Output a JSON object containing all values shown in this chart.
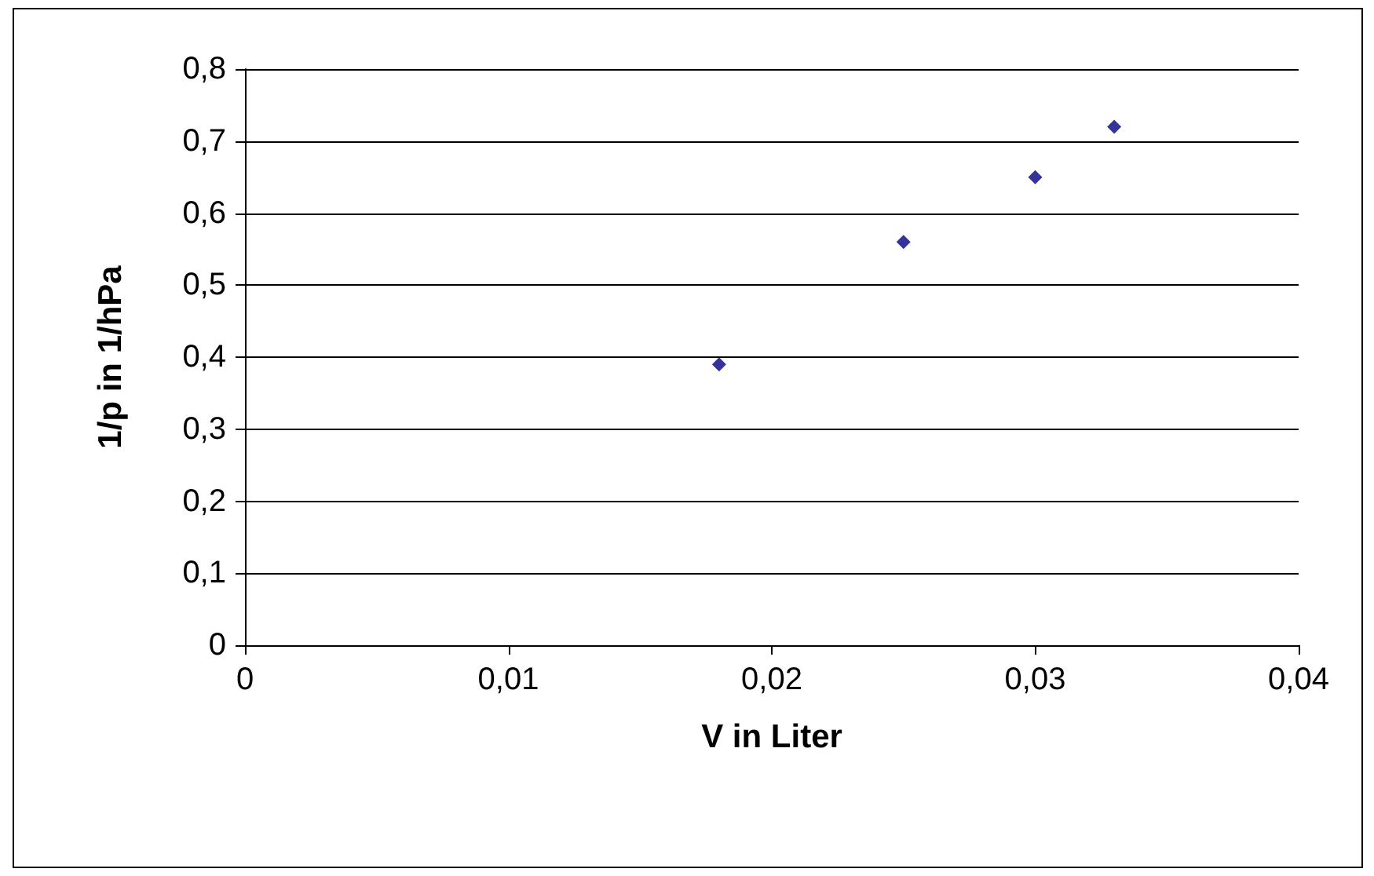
{
  "chart_data": {
    "type": "scatter",
    "xlabel": "V in Liter",
    "ylabel": "1/p in 1/hPa",
    "x": [
      0.018,
      0.025,
      0.03,
      0.033
    ],
    "series": [
      {
        "color": "#000080",
        "values": [
          0.39,
          0.56,
          0.65,
          0.72
        ]
      }
    ],
    "xlim": [
      0,
      0.04
    ],
    "xticks": [
      {
        "value": 0,
        "label": "0"
      },
      {
        "value": 0.01,
        "label": "0,01"
      },
      {
        "value": 0.02,
        "label": "0,02"
      },
      {
        "value": 0.03,
        "label": "0,03"
      },
      {
        "value": 0.04,
        "label": "0,04"
      }
    ],
    "ylim": [
      0,
      0.8
    ],
    "yticks": [
      {
        "value": 0,
        "label": "0"
      },
      {
        "value": 0.1,
        "label": "0,1"
      },
      {
        "value": 0.2,
        "label": "0,2"
      },
      {
        "value": 0.3,
        "label": "0,3"
      },
      {
        "value": 0.4,
        "label": "0,4"
      },
      {
        "value": 0.5,
        "label": "0,5"
      },
      {
        "value": 0.6,
        "label": "0,6"
      },
      {
        "value": 0.7,
        "label": "0,7"
      },
      {
        "value": 0.8,
        "label": "0,8"
      }
    ],
    "grid": "y",
    "marker": "diamond"
  }
}
